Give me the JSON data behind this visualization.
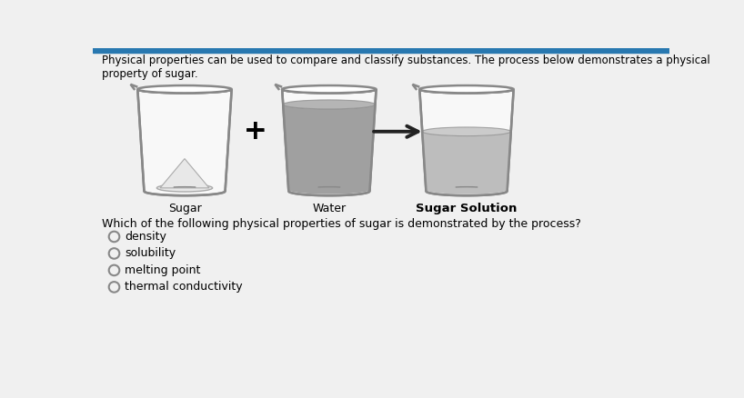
{
  "bg_color": "#dcdcdc",
  "content_bg": "#f0f0f0",
  "top_bar_color": "#2878b0",
  "top_text": "Physical properties can be used to compare and classify substances. The process below demonstrates a physical property of sugar.",
  "beaker1_label": "Sugar",
  "beaker2_label": "Water",
  "beaker3_label": "Sugar Solution",
  "question": "Which of the following physical properties of sugar is demonstrated by the process?",
  "options": [
    "density",
    "solubility",
    "melting point",
    "thermal conductivity"
  ],
  "liquid2_color": "#999999",
  "liquid3_color": "#b8b8b8",
  "beaker_edge": "#888888",
  "beaker_face": "#f8f8f8",
  "sugar_pile_color": "#e8e8e8",
  "text_color": "#222222",
  "label3_bold": true
}
